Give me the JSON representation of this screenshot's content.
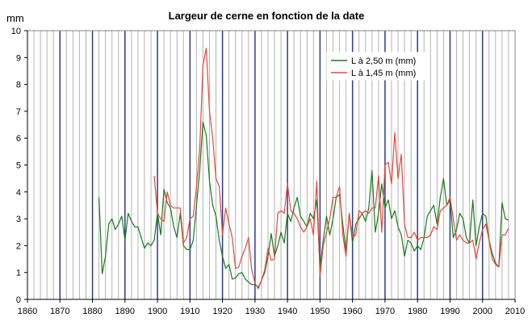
{
  "chart_data": {
    "type": "line",
    "title": "Largeur de cerne en fonction de la date",
    "ylabel": "mm",
    "xlabel": "",
    "xlim": [
      1860,
      2010
    ],
    "ylim": [
      0,
      10
    ],
    "x_ticks": [
      1860,
      1870,
      1880,
      1890,
      1900,
      1910,
      1920,
      1930,
      1940,
      1950,
      1960,
      1970,
      1980,
      1990,
      2000,
      2010
    ],
    "y_ticks": [
      0,
      1,
      2,
      3,
      4,
      5,
      6,
      7,
      8,
      9,
      10
    ],
    "grid": "vertical lines every year, darker every decade",
    "legend_position": "upper-right",
    "colors": {
      "series1": "#1a7a1a",
      "series2": "#e8463c",
      "minor_grid": "#b3b3b3",
      "major_grid": "#2b3a8f"
    },
    "series": [
      {
        "name": "L à 2,50 m (mm)",
        "color": "#1a7a1a",
        "x": [
          1882,
          1883,
          1884,
          1885,
          1886,
          1887,
          1888,
          1889,
          1890,
          1891,
          1892,
          1893,
          1894,
          1895,
          1896,
          1897,
          1898,
          1899,
          1900,
          1901,
          1902,
          1903,
          1904,
          1905,
          1906,
          1907,
          1908,
          1909,
          1910,
          1911,
          1912,
          1913,
          1914,
          1915,
          1916,
          1917,
          1918,
          1919,
          1920,
          1921,
          1922,
          1923,
          1924,
          1925,
          1926,
          1927,
          1928,
          1929,
          1930,
          1931,
          1932,
          1933,
          1934,
          1935,
          1936,
          1937,
          1938,
          1939,
          1940,
          1941,
          1942,
          1943,
          1944,
          1945,
          1946,
          1947,
          1948,
          1949,
          1950,
          1951,
          1952,
          1953,
          1954,
          1955,
          1956,
          1957,
          1958,
          1959,
          1960,
          1961,
          1962,
          1963,
          1964,
          1965,
          1966,
          1967,
          1968,
          1969,
          1970,
          1971,
          1972,
          1973,
          1974,
          1975,
          1976,
          1977,
          1978,
          1979,
          1980,
          1981,
          1982,
          1983,
          1984,
          1985,
          1986,
          1987,
          1988,
          1989,
          1990,
          1991,
          1992,
          1993,
          1994,
          1995,
          1996,
          1997,
          1998,
          1999,
          2000,
          2001,
          2002,
          2003,
          2004,
          2005,
          2006,
          2007,
          2008
        ],
        "y": [
          3.8,
          0.95,
          1.6,
          2.8,
          3.0,
          2.6,
          2.8,
          3.1,
          2.2,
          3.2,
          2.9,
          2.7,
          2.7,
          2.3,
          1.9,
          2.1,
          2.0,
          2.2,
          3.2,
          2.4,
          4.1,
          3.6,
          3.4,
          2.7,
          2.3,
          3.2,
          2.0,
          1.85,
          1.85,
          2.2,
          3.5,
          4.8,
          6.6,
          6.1,
          4.4,
          3.5,
          3.1,
          2.2,
          1.6,
          1.15,
          1.3,
          0.75,
          0.8,
          0.95,
          1.0,
          0.75,
          0.65,
          0.55,
          0.55,
          0.45,
          0.7,
          1.0,
          1.6,
          2.45,
          1.6,
          2.0,
          2.5,
          2.1,
          3.2,
          2.9,
          3.4,
          3.8,
          3.1,
          2.9,
          2.7,
          3.2,
          3.0,
          3.7,
          1.15,
          2.2,
          3.1,
          2.4,
          3.0,
          3.8,
          3.9,
          2.8,
          1.8,
          3.2,
          2.1,
          2.8,
          3.0,
          3.2,
          2.9,
          3.4,
          4.8,
          2.5,
          3.2,
          4.3,
          3.4,
          3.7,
          3.0,
          3.3,
          2.7,
          2.4,
          1.6,
          2.2,
          2.1,
          1.8,
          2.0,
          1.85,
          2.3,
          3.1,
          3.3,
          3.5,
          2.8,
          3.8,
          4.5,
          3.5,
          3.7,
          2.3,
          2.6,
          3.2,
          3.0,
          2.3,
          2.1,
          3.7,
          2.0,
          2.7,
          3.2,
          3.1,
          2.2,
          1.7,
          1.35,
          1.2,
          3.6,
          3.0,
          2.95
        ]
      },
      {
        "name": "L à 1,45 m (mm)",
        "color": "#e8463c",
        "x": [
          1899,
          1900,
          1901,
          1902,
          1903,
          1904,
          1905,
          1906,
          1907,
          1908,
          1909,
          1910,
          1911,
          1912,
          1913,
          1914,
          1915,
          1916,
          1917,
          1918,
          1919,
          1920,
          1921,
          1922,
          1923,
          1924,
          1925,
          1926,
          1927,
          1928,
          1929,
          1930,
          1931,
          1932,
          1933,
          1934,
          1935,
          1936,
          1937,
          1938,
          1939,
          1940,
          1941,
          1942,
          1943,
          1944,
          1945,
          1946,
          1947,
          1948,
          1949,
          1950,
          1951,
          1952,
          1953,
          1954,
          1955,
          1956,
          1957,
          1958,
          1959,
          1960,
          1961,
          1962,
          1963,
          1964,
          1965,
          1966,
          1967,
          1968,
          1969,
          1970,
          1971,
          1972,
          1973,
          1974,
          1975,
          1976,
          1977,
          1978,
          1979,
          1980,
          1981,
          1982,
          1983,
          1984,
          1985,
          1986,
          1987,
          1988,
          1989,
          1990,
          1991,
          1992,
          1993,
          1994,
          1995,
          1996,
          1997,
          1998,
          1999,
          2000,
          2001,
          2002,
          2003,
          2004,
          2005,
          2006,
          2007,
          2008
        ],
        "y": [
          4.6,
          3.2,
          3.0,
          2.9,
          4.0,
          3.5,
          3.4,
          3.4,
          3.4,
          2.1,
          2.3,
          3.0,
          3.1,
          4.2,
          5.6,
          8.7,
          9.35,
          7.0,
          6.0,
          4.5,
          4.2,
          2.4,
          3.4,
          2.8,
          2.3,
          1.15,
          1.2,
          1.6,
          1.9,
          2.3,
          1.1,
          0.6,
          0.4,
          0.7,
          1.1,
          1.9,
          1.45,
          1.5,
          3.2,
          3.3,
          3.2,
          4.3,
          3.3,
          3.2,
          3.0,
          2.7,
          2.5,
          2.7,
          3.0,
          2.4,
          4.4,
          0.85,
          2.0,
          2.5,
          3.0,
          3.8,
          3.8,
          4.2,
          2.4,
          1.6,
          3.2,
          2.3,
          2.4,
          3.3,
          3.2,
          3.3,
          3.2,
          3.4,
          3.4,
          4.6,
          2.5,
          5.0,
          5.1,
          4.3,
          6.2,
          4.5,
          5.4,
          2.8,
          2.3,
          2.3,
          2.5,
          2.2,
          2.3,
          2.3,
          2.3,
          2.4,
          2.7,
          2.6,
          3.3,
          3.4,
          3.5,
          3.8,
          3.0,
          2.2,
          2.4,
          2.2,
          2.1,
          2.1,
          2.2,
          1.5,
          2.1,
          2.6,
          2.8,
          2.2,
          1.5,
          1.3,
          1.2,
          2.4,
          2.4,
          2.65
        ]
      }
    ]
  }
}
